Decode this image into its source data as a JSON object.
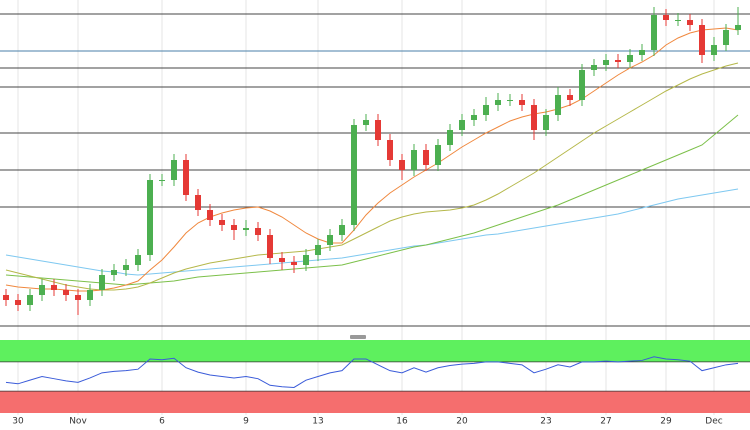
{
  "chart_data": {
    "type": "candlestick",
    "categories": [
      null,
      "30",
      null,
      null,
      null,
      null,
      "Nov",
      null,
      null,
      null,
      null,
      null,
      null,
      "6",
      null,
      null,
      null,
      null,
      null,
      null,
      "9",
      null,
      null,
      null,
      null,
      null,
      "13",
      null,
      null,
      null,
      null,
      null,
      null,
      "16",
      null,
      null,
      null,
      null,
      "20",
      null,
      null,
      null,
      null,
      null,
      null,
      "23",
      null,
      null,
      null,
      null,
      "27",
      null,
      null,
      null,
      null,
      "29",
      null,
      null,
      null,
      "Dec",
      null,
      null
    ],
    "open": [
      30,
      25,
      20,
      30,
      40,
      35,
      30,
      25,
      35,
      50,
      55,
      60,
      70,
      145,
      145,
      165,
      130,
      115,
      105,
      100,
      95,
      97,
      90,
      67,
      63,
      60,
      70,
      80,
      90,
      100,
      200,
      205,
      185,
      165,
      155,
      175,
      160,
      180,
      195,
      205,
      210,
      220,
      225,
      225,
      220,
      195,
      210,
      230,
      225,
      255,
      260,
      265,
      263,
      270,
      275,
      310,
      305,
      305,
      300,
      270,
      280,
      295
    ],
    "high": [
      36,
      31,
      36,
      46,
      46,
      41,
      36,
      41,
      56,
      61,
      66,
      76,
      151,
      151,
      171,
      171,
      136,
      121,
      111,
      106,
      105,
      103,
      96,
      73,
      69,
      76,
      86,
      96,
      106,
      206,
      211,
      211,
      191,
      171,
      181,
      181,
      186,
      201,
      211,
      216,
      228,
      232,
      231,
      231,
      226,
      216,
      238,
      236,
      261,
      266,
      271,
      271,
      276,
      281,
      318,
      316,
      312,
      311,
      306,
      288,
      301,
      318
    ],
    "low": [
      19,
      14,
      14,
      24,
      29,
      24,
      10,
      19,
      29,
      44,
      49,
      54,
      64,
      139,
      139,
      124,
      109,
      99,
      94,
      85,
      89,
      84,
      61,
      55,
      52,
      54,
      64,
      74,
      84,
      94,
      194,
      179,
      159,
      145,
      149,
      154,
      154,
      174,
      189,
      199,
      204,
      214,
      219,
      214,
      185,
      189,
      204,
      219,
      219,
      249,
      254,
      257,
      257,
      264,
      269,
      299,
      299,
      294,
      262,
      264,
      274,
      290
    ],
    "close": [
      25,
      20,
      30,
      40,
      35,
      30,
      25,
      35,
      50,
      55,
      60,
      70,
      145,
      145,
      165,
      130,
      115,
      105,
      100,
      95,
      97,
      90,
      67,
      63,
      60,
      70,
      80,
      90,
      100,
      200,
      205,
      185,
      165,
      155,
      175,
      160,
      180,
      195,
      205,
      210,
      220,
      225,
      225,
      220,
      195,
      210,
      230,
      225,
      255,
      260,
      265,
      263,
      270,
      275,
      310,
      305,
      305,
      300,
      270,
      280,
      295,
      300
    ],
    "up_color": "#4caf50",
    "down_color": "#e53935",
    "ylim": [
      0,
      325
    ],
    "overlays": [
      {
        "color": "#f0883e",
        "values": [
          40,
          38,
          37,
          36,
          36,
          35,
          34,
          34,
          35,
          37,
          40,
          44,
          55,
          65,
          78,
          92,
          102,
          108,
          112,
          115,
          117,
          118,
          114,
          108,
          100,
          92,
          86,
          82,
          82,
          95,
          110,
          122,
          132,
          140,
          148,
          155,
          162,
          170,
          178,
          185,
          192,
          198,
          204,
          208,
          211,
          213,
          216,
          220,
          226,
          234,
          242,
          250,
          257,
          263,
          270,
          280,
          287,
          292,
          295,
          296,
          297,
          295
        ]
      },
      {
        "color": "#b5b84a",
        "values": [
          55,
          52,
          49,
          46,
          43,
          40,
          38,
          36,
          35,
          35,
          36,
          38,
          42,
          47,
          52,
          56,
          59,
          62,
          64,
          66,
          68,
          70,
          71,
          72,
          73,
          74,
          76,
          78,
          80,
          86,
          92,
          98,
          104,
          108,
          111,
          113,
          114,
          115,
          117,
          120,
          125,
          131,
          138,
          145,
          152,
          160,
          168,
          176,
          184,
          192,
          199,
          206,
          213,
          220,
          227,
          234,
          240,
          246,
          251,
          255,
          259,
          262
        ]
      },
      {
        "color": "#7cc04a",
        "values": [
          50,
          49,
          48,
          47,
          46,
          45,
          44,
          43,
          42,
          41,
          40,
          41,
          42,
          43,
          44,
          46,
          48,
          49,
          50,
          51,
          52,
          53,
          54,
          55,
          56,
          57,
          58,
          59,
          60,
          63,
          66,
          69,
          72,
          75,
          78,
          80,
          83,
          86,
          89,
          92,
          96,
          100,
          104,
          108,
          112,
          116,
          120,
          125,
          130,
          135,
          140,
          145,
          150,
          155,
          160,
          165,
          170,
          175,
          180,
          190,
          200,
          210
        ]
      },
      {
        "color": "#7ec8f0",
        "values": [
          70,
          68,
          66,
          64,
          62,
          60,
          58,
          56,
          54,
          53,
          51,
          50,
          51,
          52,
          53,
          54,
          55,
          56,
          57,
          58,
          59,
          60,
          61,
          62,
          63,
          64,
          65,
          66,
          67,
          69,
          71,
          73,
          75,
          77,
          79,
          80,
          82,
          84,
          86,
          88,
          90,
          91,
          93,
          95,
          97,
          99,
          101,
          103,
          105,
          107,
          109,
          111,
          114,
          117,
          120,
          123,
          126,
          128,
          130,
          132,
          134,
          136
        ]
      }
    ],
    "levels": [
      {
        "value": 311,
        "color": "#444444"
      },
      {
        "value": 274,
        "color": "#4a7fa8"
      },
      {
        "value": 257,
        "color": "#444444"
      },
      {
        "value": 238,
        "color": "#444444"
      },
      {
        "value": 192,
        "color": "#444444"
      },
      {
        "value": 155,
        "color": "#444444"
      },
      {
        "value": 118,
        "color": "#444444"
      }
    ],
    "rsi": {
      "color": "#3a5bd9",
      "ylim": [
        0,
        100
      ],
      "upper": 70,
      "lower": 30,
      "upper_color": "#5ef05e",
      "lower_color": "#f56e6e",
      "values": [
        42,
        40,
        45,
        50,
        47,
        44,
        42,
        48,
        55,
        57,
        58,
        60,
        74,
        73,
        75,
        62,
        56,
        52,
        50,
        48,
        50,
        47,
        38,
        36,
        35,
        45,
        50,
        55,
        58,
        74,
        74,
        66,
        58,
        55,
        62,
        56,
        62,
        65,
        67,
        68,
        70,
        70,
        68,
        66,
        55,
        60,
        66,
        63,
        70,
        70,
        71,
        70,
        71,
        72,
        77,
        74,
        73,
        71,
        58,
        62,
        66,
        68
      ]
    }
  }
}
